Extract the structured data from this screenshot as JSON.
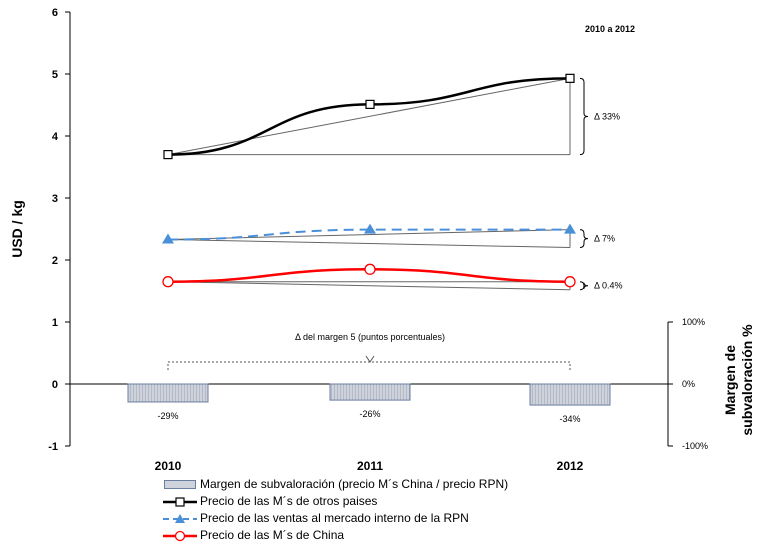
{
  "chart_data": {
    "type": "line",
    "categories": [
      "2010",
      "2011",
      "2012"
    ],
    "ylabel": "USD / kg",
    "ylim": [
      -1,
      6
    ],
    "yticks": [
      "-1",
      "0",
      "1",
      "2",
      "3",
      "4",
      "5",
      "6"
    ],
    "secondary_axis": {
      "label_line1": "Margen de",
      "label_line2": "subvaloración %",
      "ticks": [
        "100%",
        "0%",
        "-100%"
      ]
    },
    "series": [
      {
        "name": "Precio de las M´s de otros paises",
        "values": [
          3.7,
          4.51,
          4.93
        ],
        "color": "#000000",
        "marker": "square",
        "dash": false
      },
      {
        "name": "Precio de las ventas al mercado interno de la RPN",
        "values": [
          2.33,
          2.49,
          2.49
        ],
        "color": "#4a90d9",
        "marker": "triangle",
        "dash": true
      },
      {
        "name": "Precio de las M´s de China",
        "values": [
          1.65,
          1.85,
          1.65
        ],
        "color": "#ff0000",
        "marker": "circle",
        "dash": false
      }
    ],
    "bars": {
      "name": "Margen de subvaloración (precio M´s China / precio RPN)",
      "values": [
        -0.29,
        -0.26,
        -0.34
      ],
      "labels": [
        "-29%",
        "-26%",
        "-34%"
      ]
    },
    "annotations": {
      "period": "2010 a 2012",
      "delta_others": "Δ 33%",
      "delta_rpn": "Δ 7%",
      "delta_china": "Δ 0.4%",
      "margin_change": "Δ del margen 5 (puntos porcentuales)"
    }
  },
  "colors": {
    "bar_fill": "#cdd2db",
    "bar_border": "#6b7fa3",
    "guide": "#666666"
  }
}
